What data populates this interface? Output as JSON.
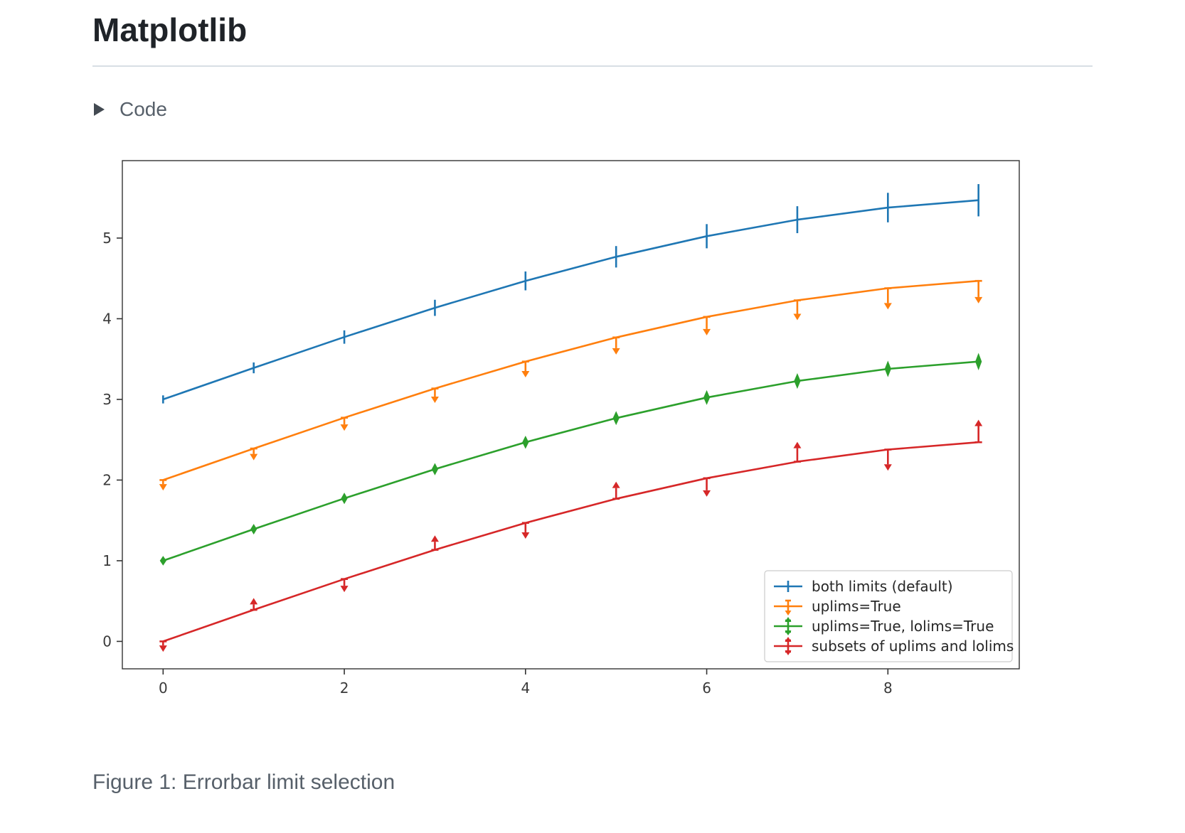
{
  "page": {
    "title": "Matplotlib",
    "code_toggle": {
      "label": "Code",
      "state": "collapsed"
    },
    "figure_caption": "Figure 1: Errorbar limit selection"
  },
  "chart_data": {
    "type": "line",
    "title": "",
    "xlabel": "",
    "ylabel": "",
    "x": [
      0,
      1,
      2,
      3,
      4,
      5,
      6,
      7,
      8,
      9
    ],
    "x_ticks": [
      0,
      2,
      4,
      6,
      8
    ],
    "y_ticks": [
      0,
      1,
      2,
      3,
      4,
      5
    ],
    "xlim": [
      -0.45,
      9.45
    ],
    "ylim": [
      -0.34,
      5.96
    ],
    "grid": false,
    "yerr": [
      0.05,
      0.067,
      0.083,
      0.1,
      0.117,
      0.133,
      0.15,
      0.167,
      0.183,
      0.2
    ],
    "series": [
      {
        "name": "both limits (default)",
        "color": "#1f77b4",
        "limits": "none",
        "values": [
          3.0,
          3.391,
          3.773,
          4.135,
          4.469,
          4.768,
          5.023,
          5.228,
          5.378,
          5.469
        ]
      },
      {
        "name": "uplims=True",
        "color": "#ff7f0e",
        "limits": "uplims",
        "values": [
          2.0,
          2.391,
          2.773,
          3.135,
          3.469,
          3.768,
          4.023,
          4.228,
          4.378,
          4.469
        ]
      },
      {
        "name": "uplims=True, lolims=True",
        "color": "#2ca02c",
        "limits": "both",
        "values": [
          1.0,
          1.391,
          1.773,
          2.135,
          2.469,
          2.768,
          3.023,
          3.228,
          3.378,
          3.469
        ]
      },
      {
        "name": "subsets of uplims and lolims",
        "color": "#d62728",
        "limits": "alternating",
        "uplims": [
          true,
          false,
          true,
          false,
          true,
          false,
          true,
          false,
          true,
          false
        ],
        "lolims": [
          false,
          true,
          false,
          true,
          false,
          true,
          false,
          true,
          false,
          true
        ],
        "values": [
          0.0,
          0.391,
          0.773,
          1.135,
          1.469,
          1.768,
          2.023,
          2.228,
          2.378,
          2.469
        ]
      }
    ],
    "legend": {
      "position": "lower right"
    }
  }
}
